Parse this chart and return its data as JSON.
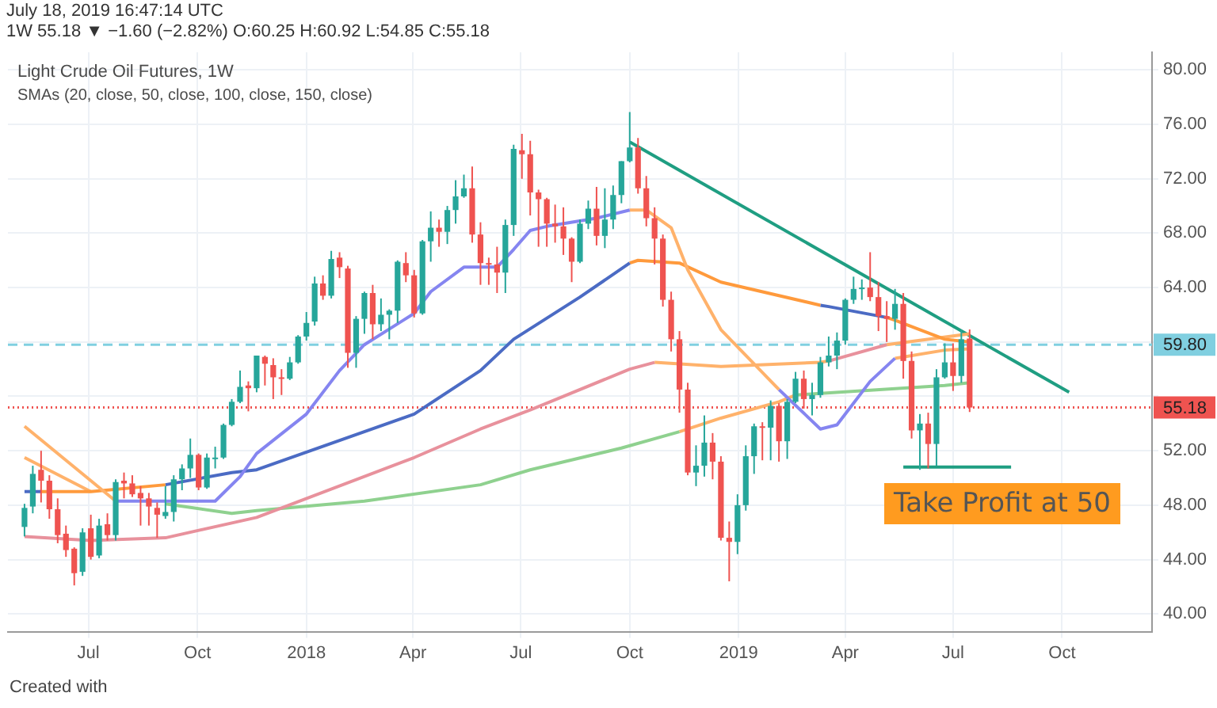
{
  "chart_data": {
    "type": "candlestick",
    "title": "Light Crude Oil Futures, 1W",
    "subtitle": "SMAs (20, close, 50, close, 100, close, 150, close)",
    "annotations": [
      "July 18, 2019 16:47:14 UTC",
      "1W 55.18 ▼ −1.60 (−2.82%) O:60.25 H:60.92 L:54.85 C:55.18",
      "Take Profit at 50",
      "Created with"
    ],
    "x": [
      "2017-05-08",
      "2017-05-15",
      "2017-05-22",
      "2017-05-29",
      "2017-06-05",
      "2017-06-12",
      "2017-06-19",
      "2017-06-26",
      "2017-07-03",
      "2017-07-10",
      "2017-07-17",
      "2017-07-24",
      "2017-07-31",
      "2017-08-07",
      "2017-08-14",
      "2017-08-21",
      "2017-08-28",
      "2017-09-04",
      "2017-09-11",
      "2017-09-18",
      "2017-09-25",
      "2017-10-02",
      "2017-10-09",
      "2017-10-16",
      "2017-10-23",
      "2017-10-30",
      "2017-11-06",
      "2017-11-13",
      "2017-11-20",
      "2017-11-27",
      "2017-12-04",
      "2017-12-11",
      "2017-12-18",
      "2017-12-25",
      "2018-01-01",
      "2018-01-08",
      "2018-01-15",
      "2018-01-22",
      "2018-01-29",
      "2018-02-05",
      "2018-02-12",
      "2018-02-19",
      "2018-02-26",
      "2018-03-05",
      "2018-03-12",
      "2018-03-19",
      "2018-03-26",
      "2018-04-02",
      "2018-04-09",
      "2018-04-16",
      "2018-04-23",
      "2018-04-30",
      "2018-05-07",
      "2018-05-14",
      "2018-05-21",
      "2018-05-28",
      "2018-06-04",
      "2018-06-11",
      "2018-06-18",
      "2018-06-25",
      "2018-07-02",
      "2018-07-09",
      "2018-07-16",
      "2018-07-23",
      "2018-07-30",
      "2018-08-06",
      "2018-08-13",
      "2018-08-20",
      "2018-08-27",
      "2018-09-03",
      "2018-09-10",
      "2018-09-17",
      "2018-09-24",
      "2018-10-01",
      "2018-10-08",
      "2018-10-15",
      "2018-10-22",
      "2018-10-29",
      "2018-11-05",
      "2018-11-12",
      "2018-11-19",
      "2018-11-26",
      "2018-12-03",
      "2018-12-10",
      "2018-12-17",
      "2018-12-24",
      "2018-12-31",
      "2019-01-07",
      "2019-01-14",
      "2019-01-21",
      "2019-01-28",
      "2019-02-04",
      "2019-02-11",
      "2019-02-18",
      "2019-02-25",
      "2019-03-04",
      "2019-03-11",
      "2019-03-18",
      "2019-03-25",
      "2019-04-01",
      "2019-04-08",
      "2019-04-15",
      "2019-04-22",
      "2019-04-29",
      "2019-05-06",
      "2019-05-13",
      "2019-05-20",
      "2019-05-27",
      "2019-06-03",
      "2019-06-10",
      "2019-06-17",
      "2019-06-24",
      "2019-07-01",
      "2019-07-08",
      "2019-07-15"
    ],
    "ohlc": [
      [
        46.4,
        48.1,
        45.7,
        47.8
      ],
      [
        47.9,
        50.9,
        47.4,
        50.3
      ],
      [
        50.6,
        52.0,
        48.2,
        49.8
      ],
      [
        49.8,
        50.2,
        47.0,
        47.7
      ],
      [
        47.7,
        48.5,
        45.2,
        45.8
      ],
      [
        45.9,
        46.5,
        44.2,
        44.7
      ],
      [
        44.8,
        44.9,
        42.1,
        43.0
      ],
      [
        43.1,
        46.3,
        42.8,
        46.0
      ],
      [
        46.3,
        47.3,
        44.0,
        44.2
      ],
      [
        44.3,
        47.0,
        44.1,
        46.5
      ],
      [
        46.6,
        47.4,
        45.4,
        45.8
      ],
      [
        45.8,
        49.9,
        45.4,
        49.7
      ],
      [
        49.8,
        50.4,
        48.5,
        49.6
      ],
      [
        49.6,
        50.2,
        48.6,
        48.8
      ],
      [
        48.9,
        49.4,
        46.5,
        48.5
      ],
      [
        48.5,
        48.9,
        46.5,
        47.9
      ],
      [
        47.8,
        48.2,
        45.6,
        47.3
      ],
      [
        47.2,
        49.4,
        47.0,
        47.5
      ],
      [
        47.5,
        50.2,
        46.8,
        49.9
      ],
      [
        49.9,
        51.0,
        49.1,
        50.7
      ],
      [
        50.7,
        52.9,
        50.0,
        51.7
      ],
      [
        51.7,
        51.8,
        49.1,
        49.3
      ],
      [
        49.3,
        51.8,
        49.2,
        51.5
      ],
      [
        51.5,
        52.3,
        50.7,
        51.5
      ],
      [
        51.5,
        54.0,
        51.4,
        53.9
      ],
      [
        53.9,
        55.8,
        53.8,
        55.6
      ],
      [
        55.6,
        57.9,
        55.5,
        56.7
      ],
      [
        56.8,
        57.1,
        54.9,
        56.6
      ],
      [
        56.6,
        59.0,
        56.3,
        59.0
      ],
      [
        58.9,
        59.0,
        56.8,
        58.4
      ],
      [
        58.3,
        58.8,
        55.8,
        57.4
      ],
      [
        57.4,
        58.0,
        56.1,
        57.3
      ],
      [
        57.3,
        58.9,
        57.2,
        58.5
      ],
      [
        58.5,
        60.5,
        58.4,
        60.4
      ],
      [
        60.4,
        62.2,
        60.1,
        61.4
      ],
      [
        61.5,
        64.8,
        61.2,
        64.3
      ],
      [
        64.3,
        64.9,
        63.1,
        63.4
      ],
      [
        63.4,
        66.7,
        63.2,
        66.1
      ],
      [
        66.2,
        66.6,
        64.7,
        65.5
      ],
      [
        65.4,
        65.6,
        58.1,
        59.2
      ],
      [
        59.2,
        61.9,
        58.1,
        61.7
      ],
      [
        61.7,
        63.7,
        60.6,
        63.6
      ],
      [
        63.6,
        64.2,
        60.2,
        61.3
      ],
      [
        61.3,
        63.2,
        60.8,
        62.0
      ],
      [
        62.0,
        62.4,
        60.2,
        62.3
      ],
      [
        62.3,
        66.0,
        61.4,
        65.9
      ],
      [
        65.8,
        66.6,
        64.4,
        64.9
      ],
      [
        64.9,
        65.3,
        61.8,
        62.1
      ],
      [
        62.1,
        67.5,
        62.0,
        67.4
      ],
      [
        67.4,
        69.6,
        65.9,
        68.4
      ],
      [
        68.4,
        69.0,
        67.0,
        68.1
      ],
      [
        68.1,
        70.0,
        67.2,
        69.7
      ],
      [
        69.7,
        71.9,
        68.7,
        70.7
      ],
      [
        70.7,
        72.3,
        70.6,
        71.3
      ],
      [
        71.3,
        72.9,
        67.3,
        67.9
      ],
      [
        67.9,
        68.8,
        64.2,
        65.8
      ],
      [
        65.8,
        66.2,
        64.2,
        65.7
      ],
      [
        65.7,
        67.0,
        63.6,
        65.1
      ],
      [
        65.1,
        69.0,
        63.6,
        68.6
      ],
      [
        68.6,
        74.5,
        67.8,
        74.2
      ],
      [
        74.1,
        75.3,
        72.0,
        73.8
      ],
      [
        73.8,
        74.8,
        69.3,
        71.0
      ],
      [
        71.0,
        71.2,
        67.0,
        70.5
      ],
      [
        70.5,
        70.6,
        67.0,
        68.7
      ],
      [
        68.7,
        70.1,
        67.3,
        68.5
      ],
      [
        68.5,
        69.9,
        66.4,
        67.6
      ],
      [
        67.6,
        67.7,
        64.4,
        65.9
      ],
      [
        65.9,
        69.0,
        65.8,
        68.7
      ],
      [
        68.7,
        70.4,
        68.3,
        69.8
      ],
      [
        69.8,
        71.4,
        67.1,
        67.8
      ],
      [
        67.8,
        71.3,
        66.9,
        69.0
      ],
      [
        69.0,
        71.5,
        68.3,
        70.8
      ],
      [
        70.8,
        73.3,
        70.2,
        73.3
      ],
      [
        73.3,
        76.9,
        73.2,
        74.3
      ],
      [
        74.3,
        75.0,
        70.9,
        71.3
      ],
      [
        71.3,
        72.2,
        68.5,
        69.1
      ],
      [
        69.1,
        69.9,
        65.7,
        67.6
      ],
      [
        67.6,
        67.9,
        62.6,
        63.1
      ],
      [
        63.1,
        63.7,
        59.3,
        60.2
      ],
      [
        60.2,
        60.8,
        54.8,
        56.5
      ],
      [
        56.5,
        57.0,
        50.2,
        50.4
      ],
      [
        50.4,
        52.4,
        49.4,
        50.9
      ],
      [
        50.9,
        54.6,
        50.1,
        52.6
      ],
      [
        52.6,
        53.3,
        49.9,
        51.2
      ],
      [
        51.2,
        51.6,
        45.4,
        45.6
      ],
      [
        45.6,
        46.8,
        42.4,
        45.3
      ],
      [
        45.3,
        48.8,
        44.4,
        48.0
      ],
      [
        48.0,
        52.4,
        47.6,
        51.6
      ],
      [
        51.6,
        54.0,
        50.3,
        53.8
      ],
      [
        53.8,
        54.1,
        51.3,
        53.7
      ],
      [
        53.7,
        55.7,
        51.3,
        55.3
      ],
      [
        55.3,
        55.5,
        51.2,
        52.7
      ],
      [
        52.7,
        55.8,
        51.4,
        55.6
      ],
      [
        55.6,
        57.8,
        55.5,
        57.3
      ],
      [
        57.3,
        57.9,
        55.1,
        55.8
      ],
      [
        55.8,
        57.0,
        54.6,
        56.1
      ],
      [
        56.1,
        58.9,
        55.9,
        58.5
      ],
      [
        58.5,
        60.4,
        58.2,
        59.0
      ],
      [
        59.0,
        60.7,
        58.0,
        60.1
      ],
      [
        60.1,
        63.2,
        59.8,
        63.1
      ],
      [
        63.1,
        64.8,
        62.8,
        63.9
      ],
      [
        63.9,
        64.6,
        63.1,
        64.0
      ],
      [
        64.0,
        66.6,
        63.0,
        63.3
      ],
      [
        63.3,
        64.4,
        60.8,
        61.9
      ],
      [
        61.9,
        63.0,
        60.0,
        61.7
      ],
      [
        61.7,
        63.9,
        60.9,
        62.8
      ],
      [
        62.8,
        63.6,
        57.3,
        58.6
      ],
      [
        58.6,
        59.3,
        52.9,
        53.5
      ],
      [
        53.5,
        54.7,
        50.6,
        54.0
      ],
      [
        54.0,
        54.8,
        50.7,
        52.5
      ],
      [
        52.5,
        58.0,
        50.9,
        57.4
      ],
      [
        57.4,
        59.9,
        57.3,
        58.5
      ],
      [
        58.5,
        59.9,
        56.4,
        57.5
      ],
      [
        57.5,
        60.9,
        57.0,
        60.2
      ],
      [
        60.25,
        60.92,
        54.85,
        55.18
      ]
    ],
    "series": [
      {
        "type": "line",
        "x": [
          "2017-05-08",
          "2017-07-24"
        ],
        "values": [
          53.8,
          48.3
        ],
        "color": "#ffb26b"
      },
      {
        "type": "line",
        "x": [
          "2017-07-24",
          "2017-09-04",
          "2017-10-16",
          "2017-11-06",
          "2017-11-20",
          "2018-01-01",
          "2018-01-29",
          "2018-02-19",
          "2018-04-02",
          "2018-04-16",
          "2018-05-14",
          "2018-06-11",
          "2018-06-25",
          "2018-07-09",
          "2018-07-23",
          "2018-09-03",
          "2018-10-01"
        ],
        "values": [
          48.3,
          48.3,
          48.3,
          50.1,
          51.8,
          54.7,
          57.9,
          59.8,
          62.1,
          63.7,
          65.5,
          65.5,
          66.8,
          68.2,
          68.5,
          69.1,
          69.7
        ],
        "color": "#8585f0"
      },
      {
        "type": "line",
        "x": [
          "2018-10-01",
          "2018-10-15",
          "2018-11-05",
          "2018-11-19",
          "2018-12-17",
          "2019-02-04"
        ],
        "values": [
          69.7,
          69.7,
          68.4,
          65.3,
          60.9,
          56.5
        ],
        "color": "#ffb26b"
      },
      {
        "type": "line",
        "x": [
          "2019-02-04",
          "2019-03-11",
          "2019-03-25",
          "2019-04-22",
          "2019-05-13"
        ],
        "values": [
          56.5,
          53.6,
          53.9,
          57.1,
          58.8
        ],
        "color": "#8585f0"
      },
      {
        "type": "line",
        "x": [
          "2019-05-13",
          "2019-06-24",
          "2019-07-15"
        ],
        "values": [
          58.8,
          59.4,
          59.5
        ],
        "color": "#ffb26b"
      },
      {
        "type": "line",
        "x": [
          "2017-05-08",
          "2017-05-22"
        ],
        "values": [
          49.0,
          49.0
        ],
        "color": "#4b6bc4"
      },
      {
        "type": "line",
        "x": [
          "2017-05-22",
          "2017-07-03",
          "2017-09-04"
        ],
        "values": [
          49.0,
          49.0,
          49.5
        ],
        "color": "#ff9a3c"
      },
      {
        "type": "line",
        "x": [
          "2017-09-04",
          "2017-10-30",
          "2017-11-20",
          "2018-04-02",
          "2018-05-28",
          "2018-06-25",
          "2018-08-20",
          "2018-10-01"
        ],
        "values": [
          49.5,
          50.4,
          50.6,
          54.7,
          57.9,
          60.2,
          63.3,
          65.8
        ],
        "color": "#4b6bc4"
      },
      {
        "type": "line",
        "x": [
          "2018-10-01",
          "2018-10-08",
          "2018-11-12",
          "2018-12-17",
          "2019-03-11"
        ],
        "values": [
          65.8,
          66.0,
          65.8,
          64.4,
          62.7
        ],
        "color": "#ff9a3c"
      },
      {
        "type": "line",
        "x": [
          "2019-03-11",
          "2019-03-18",
          "2019-05-06"
        ],
        "values": [
          62.7,
          62.6,
          61.8
        ],
        "color": "#4b6bc4"
      },
      {
        "type": "line",
        "x": [
          "2019-05-06",
          "2019-05-13",
          "2019-06-24",
          "2019-07-15"
        ],
        "values": [
          61.8,
          61.6,
          60.2,
          60.0
        ],
        "color": "#ff9a3c"
      },
      {
        "type": "line",
        "x": [
          "2017-05-08",
          "2017-07-03",
          "2017-09-04",
          "2017-11-20",
          "2018-04-02",
          "2018-05-28",
          "2018-07-09",
          "2018-10-01",
          "2018-10-22"
        ],
        "values": [
          45.7,
          45.4,
          45.6,
          47.1,
          51.5,
          53.6,
          55.0,
          58.0,
          58.5
        ],
        "color": "#e8919c"
      },
      {
        "type": "line",
        "x": [
          "2018-10-22",
          "2018-12-17",
          "2019-03-11",
          "2019-03-18"
        ],
        "values": [
          58.5,
          58.2,
          58.5,
          58.6
        ],
        "color": "#ffb26b"
      },
      {
        "type": "line",
        "x": [
          "2019-03-18",
          "2019-05-06"
        ],
        "values": [
          58.6,
          59.8
        ],
        "color": "#e8919c"
      },
      {
        "type": "line",
        "x": [
          "2019-05-06",
          "2019-07-15"
        ],
        "values": [
          59.8,
          60.6
        ],
        "color": "#ffb26b"
      },
      {
        "type": "line",
        "x": [
          "2017-09-04",
          "2017-10-30",
          "2017-11-20",
          "2018-02-19",
          "2018-05-28",
          "2018-07-09",
          "2018-09-24",
          "2018-11-12"
        ],
        "values": [
          48.1,
          47.4,
          47.6,
          48.3,
          49.5,
          50.6,
          52.2,
          53.4
        ],
        "color": "#8fd18f"
      },
      {
        "type": "line",
        "x": [
          "2018-11-12",
          "2018-12-17",
          "2019-02-04",
          "2019-02-18"
        ],
        "values": [
          53.4,
          54.4,
          55.6,
          56.1
        ],
        "color": "#ffb26b"
      },
      {
        "type": "line",
        "x": [
          "2019-02-18",
          "2019-06-24",
          "2019-07-15"
        ],
        "values": [
          56.1,
          56.8,
          57.0
        ],
        "color": "#8fd18f"
      },
      {
        "type": "line",
        "x": [
          "2017-05-08",
          "2017-07-03"
        ],
        "values": [
          51.5,
          49.0
        ],
        "color": "#ffb26b"
      },
      {
        "type": "line",
        "x": [
          "2018-10-01",
          "2019-10-07"
        ],
        "values": [
          74.7,
          56.3
        ],
        "color": "#1f9e82"
      },
      {
        "type": "line",
        "x": [
          "2019-05-20",
          "2019-08-19"
        ],
        "values": [
          50.8,
          50.8
        ],
        "color": "#1f9e82"
      }
    ],
    "ref_lines": [
      {
        "axis": "y",
        "value": 59.8,
        "label": "59.80",
        "color": "#80cfe0",
        "line_style": "dashed"
      },
      {
        "axis": "y",
        "value": 55.18,
        "label": "55.18",
        "color": "#ef5350",
        "line_style": "dotted"
      }
    ],
    "xlim": [
      "2017-04-24",
      "2019-12-16"
    ],
    "xticks": [
      {
        "value": "2017-07-01",
        "label": "Jul"
      },
      {
        "value": "2017-10-01",
        "label": "Oct"
      },
      {
        "value": "2018-01-01",
        "label": "2018"
      },
      {
        "value": "2018-04-01",
        "label": "Apr"
      },
      {
        "value": "2018-07-01",
        "label": "Jul"
      },
      {
        "value": "2018-10-01",
        "label": "Oct"
      },
      {
        "value": "2019-01-01",
        "label": "2019"
      },
      {
        "value": "2019-04-01",
        "label": "Apr"
      },
      {
        "value": "2019-07-01",
        "label": "Jul"
      },
      {
        "value": "2019-10-01",
        "label": "Oct"
      }
    ],
    "ylim": [
      38.7,
      81.3
    ],
    "yticks": [
      {
        "value": 40,
        "label": "40.00"
      },
      {
        "value": 44,
        "label": "44.00"
      },
      {
        "value": 48,
        "label": "48.00"
      },
      {
        "value": 52,
        "label": "52.00"
      },
      {
        "value": 56,
        "label": null
      },
      {
        "value": 60,
        "label": null
      },
      {
        "value": 64,
        "label": "64.00"
      },
      {
        "value": 68,
        "label": "68.00"
      },
      {
        "value": 72,
        "label": "72.00"
      },
      {
        "value": 76,
        "label": "76.00"
      },
      {
        "value": 80,
        "label": "80.00"
      }
    ],
    "grid": true
  }
}
